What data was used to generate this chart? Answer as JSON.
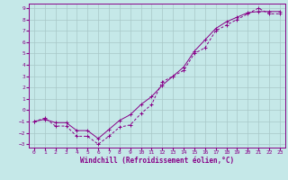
{
  "xlabel": "Windchill (Refroidissement éolien,°C)",
  "xlim": [
    -0.5,
    23.5
  ],
  "ylim": [
    -3.3,
    9.4
  ],
  "xticks": [
    0,
    1,
    2,
    3,
    4,
    5,
    6,
    7,
    8,
    9,
    10,
    11,
    12,
    13,
    14,
    15,
    16,
    17,
    18,
    19,
    20,
    21,
    22,
    23
  ],
  "yticks": [
    -3,
    -2,
    -1,
    0,
    1,
    2,
    3,
    4,
    5,
    6,
    7,
    8,
    9
  ],
  "bg_color": "#c5e8e8",
  "grid_color": "#a8c8c8",
  "line_color": "#880088",
  "line1_x": [
    0,
    1,
    2,
    3,
    4,
    5,
    6,
    7,
    8,
    9,
    10,
    11,
    12,
    13,
    14,
    15,
    16,
    17,
    18,
    19,
    20,
    21,
    22,
    23
  ],
  "line1_y": [
    -1,
    -0.7,
    -1.4,
    -1.4,
    -2.3,
    -2.3,
    -3.0,
    -2.3,
    -1.5,
    -1.3,
    -0.3,
    0.5,
    2.5,
    3.0,
    3.5,
    5.0,
    5.5,
    7.0,
    7.5,
    8.0,
    8.5,
    9.0,
    8.5,
    8.5
  ],
  "line2_x": [
    0,
    1,
    2,
    3,
    4,
    5,
    6,
    7,
    8,
    9,
    10,
    11,
    12,
    13,
    14,
    15,
    16,
    17,
    18,
    19,
    20,
    21,
    22,
    23
  ],
  "line2_y": [
    -1,
    -0.8,
    -1.1,
    -1.1,
    -1.8,
    -1.8,
    -2.5,
    -1.7,
    -0.9,
    -0.4,
    0.5,
    1.2,
    2.2,
    3.0,
    3.8,
    5.2,
    6.2,
    7.2,
    7.8,
    8.2,
    8.6,
    8.7,
    8.7,
    8.7
  ],
  "tick_fontsize": 4.5,
  "label_fontsize": 5.5,
  "label_fontweight": "bold"
}
